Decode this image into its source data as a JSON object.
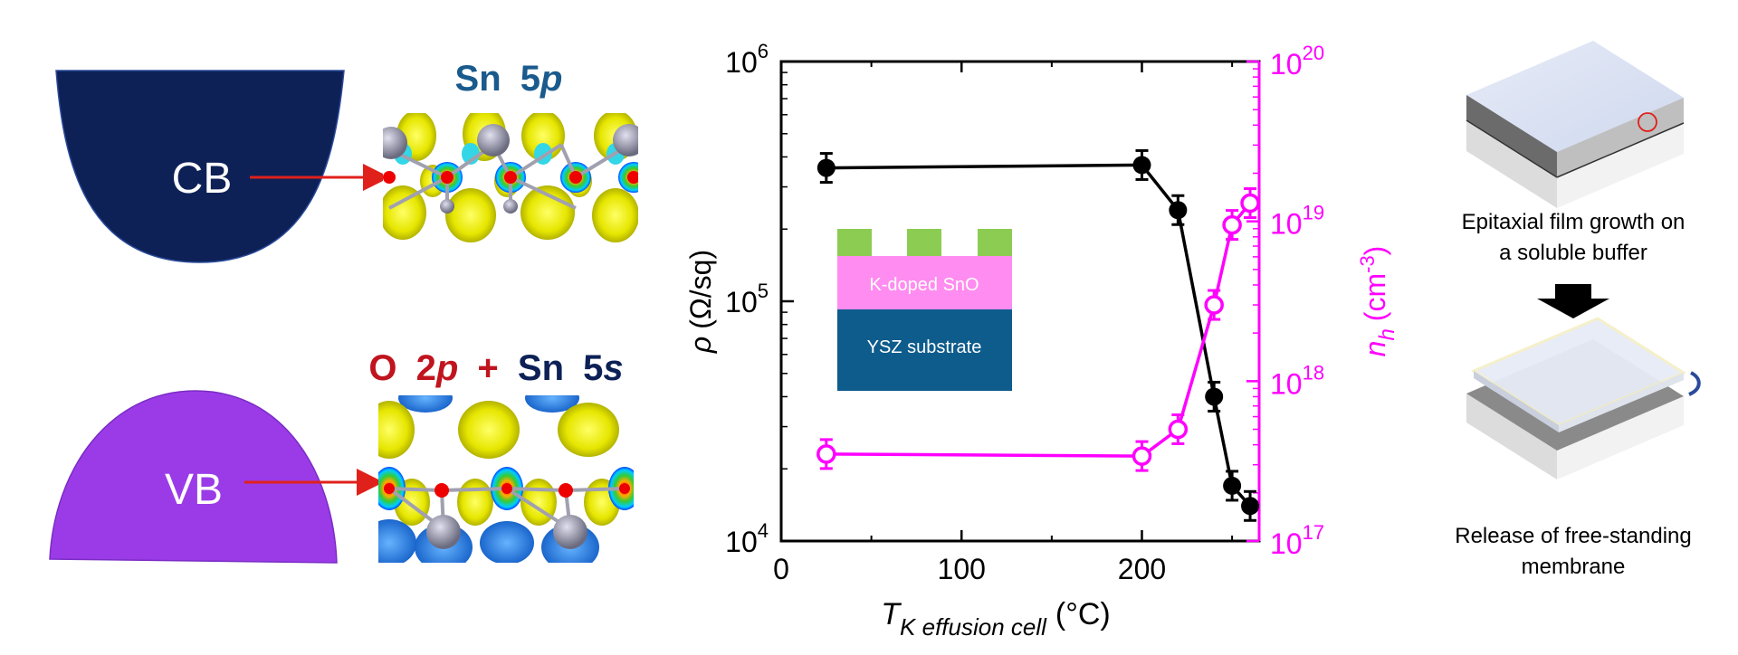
{
  "band_panel": {
    "cb_label": "CB",
    "vb_label": "VB",
    "cb_orbital_title": {
      "elem": "Sn",
      "orb_num": "5",
      "orb_letter": "p"
    },
    "vb_orbital_title": {
      "part1_elem": "O",
      "part1_num": "2",
      "part1_letter": "p",
      "plus": "+",
      "part2_elem": "Sn",
      "part2_num": "5",
      "part2_letter": "s"
    },
    "colors": {
      "cb": "#0d2157",
      "vb": "#9b3be8",
      "arrow": "#e0201b",
      "title_blue": "#1a5a8c",
      "title_red": "#c0141e",
      "title_navy": "#0d2157"
    }
  },
  "inset": {
    "layer_top": "K-doped SnO",
    "layer_bottom": "YSZ substrate",
    "colors": {
      "contacts": "#8ccc52",
      "film": "#ff8cf0",
      "substrate": "#0d5c8c"
    }
  },
  "membrane_panel": {
    "step1": [
      "Epitaxial film growth on",
      "a soluble buffer"
    ],
    "step2": [
      "Release of free-standing",
      "membrane"
    ]
  },
  "chart_data": {
    "type": "line",
    "x_axis": {
      "label_sym": "T",
      "label_sub": "K effusion cell",
      "label_unit": "(°C)",
      "range": [
        0,
        265
      ],
      "ticks": [
        0,
        100,
        200
      ],
      "tick_labels": [
        "0",
        "100",
        "200"
      ]
    },
    "y_left": {
      "label_sym": "ρ",
      "label_unit": "(Ω/sq)",
      "scale": "log",
      "range": [
        10000,
        1000000
      ],
      "ticks": [
        10000,
        100000,
        1000000
      ],
      "tick_base": "10",
      "tick_exponents": [
        "4",
        "5",
        "6"
      ],
      "color": "#000000"
    },
    "y_right": {
      "label_sym": "n",
      "label_sub": "h",
      "label_unit_open": "(cm",
      "label_unit_exp": "-3",
      "label_unit_close": ")",
      "scale": "log",
      "range": [
        1e+17,
        1e+20
      ],
      "ticks": [
        1e+17,
        1e+18,
        1e+19,
        1e+20
      ],
      "tick_base": "10",
      "tick_exponents": [
        "17",
        "18",
        "19",
        "20"
      ],
      "color": "#ff00ff"
    },
    "series": [
      {
        "axis": "left",
        "color": "#000000",
        "marker": "filled-circle",
        "x": [
          25,
          200,
          220,
          240,
          250,
          260
        ],
        "y": [
          360000,
          370000,
          240000,
          40000,
          17000,
          14000
        ]
      },
      {
        "axis": "right",
        "color": "#ff00ff",
        "marker": "open-circle",
        "x": [
          25,
          200,
          220,
          240,
          250,
          260
        ],
        "y": [
          3.5e+17,
          3.4e+17,
          5e+17,
          3e+18,
          9.5e+18,
          1.3e+19
        ]
      }
    ],
    "grid": false
  }
}
